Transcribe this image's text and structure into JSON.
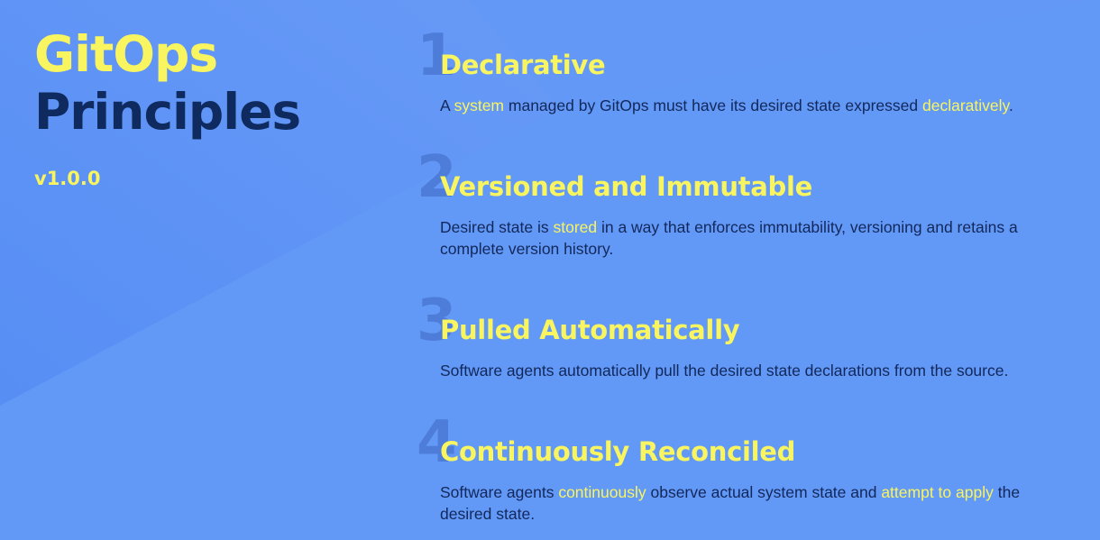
{
  "header": {
    "title_line1": "GitOps",
    "title_line2": "Principles",
    "version": "v1.0.0"
  },
  "colors": {
    "background": "#6095f6",
    "accent_yellow": "#f8f560",
    "dark_navy": "#0e2a5e",
    "number_blue": "#4a78d4"
  },
  "principles": [
    {
      "number": "1",
      "title": "Declarative",
      "desc": {
        "p0": "A ",
        "h0": "system",
        "p1": " managed by GitOps must have its desired state expressed ",
        "h1": "declaratively",
        "p2": "."
      }
    },
    {
      "number": "2",
      "title": "Versioned and Immutable",
      "desc": {
        "p0": "Desired state is ",
        "h0": "stored",
        "p1": " in a way that enforces immutability, versioning and retains a complete version history."
      }
    },
    {
      "number": "3",
      "title": "Pulled Automatically",
      "desc": {
        "p0": "Software agents automatically pull the desired state declarations from the source."
      }
    },
    {
      "number": "4",
      "title": "Continuously Reconciled",
      "desc": {
        "p0": "Software agents ",
        "h0": "continuously",
        "p1": " observe actual system state and ",
        "h1": "attempt to apply",
        "p2": " the desired state."
      }
    }
  ]
}
